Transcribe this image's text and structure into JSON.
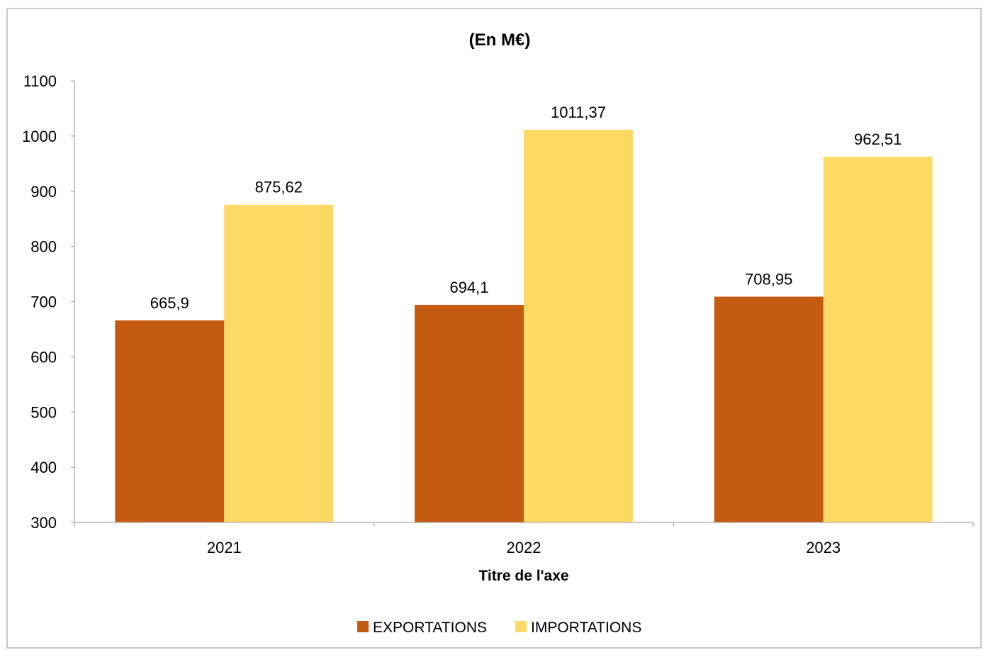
{
  "chart_data": {
    "type": "bar",
    "title": "(En M€)",
    "xlabel": "Titre de l'axe",
    "ylabel": "",
    "categories": [
      "2021",
      "2022",
      "2023"
    ],
    "series": [
      {
        "name": "EXPORTATIONS",
        "color": "#C55A11",
        "values": [
          665.9,
          694.1,
          708.95
        ],
        "labels": [
          "665,9",
          "694,1",
          "708,95"
        ]
      },
      {
        "name": "IMPORTATIONS",
        "color": "#FFD966",
        "values": [
          875.62,
          1011.37,
          962.51
        ],
        "labels": [
          "875,62",
          "1011,37",
          "962,51"
        ]
      }
    ],
    "ylim": [
      300,
      1100
    ],
    "yticks": [
      300,
      400,
      500,
      600,
      700,
      800,
      900,
      1000,
      1100
    ],
    "grid": false,
    "legend_position": "bottom"
  }
}
